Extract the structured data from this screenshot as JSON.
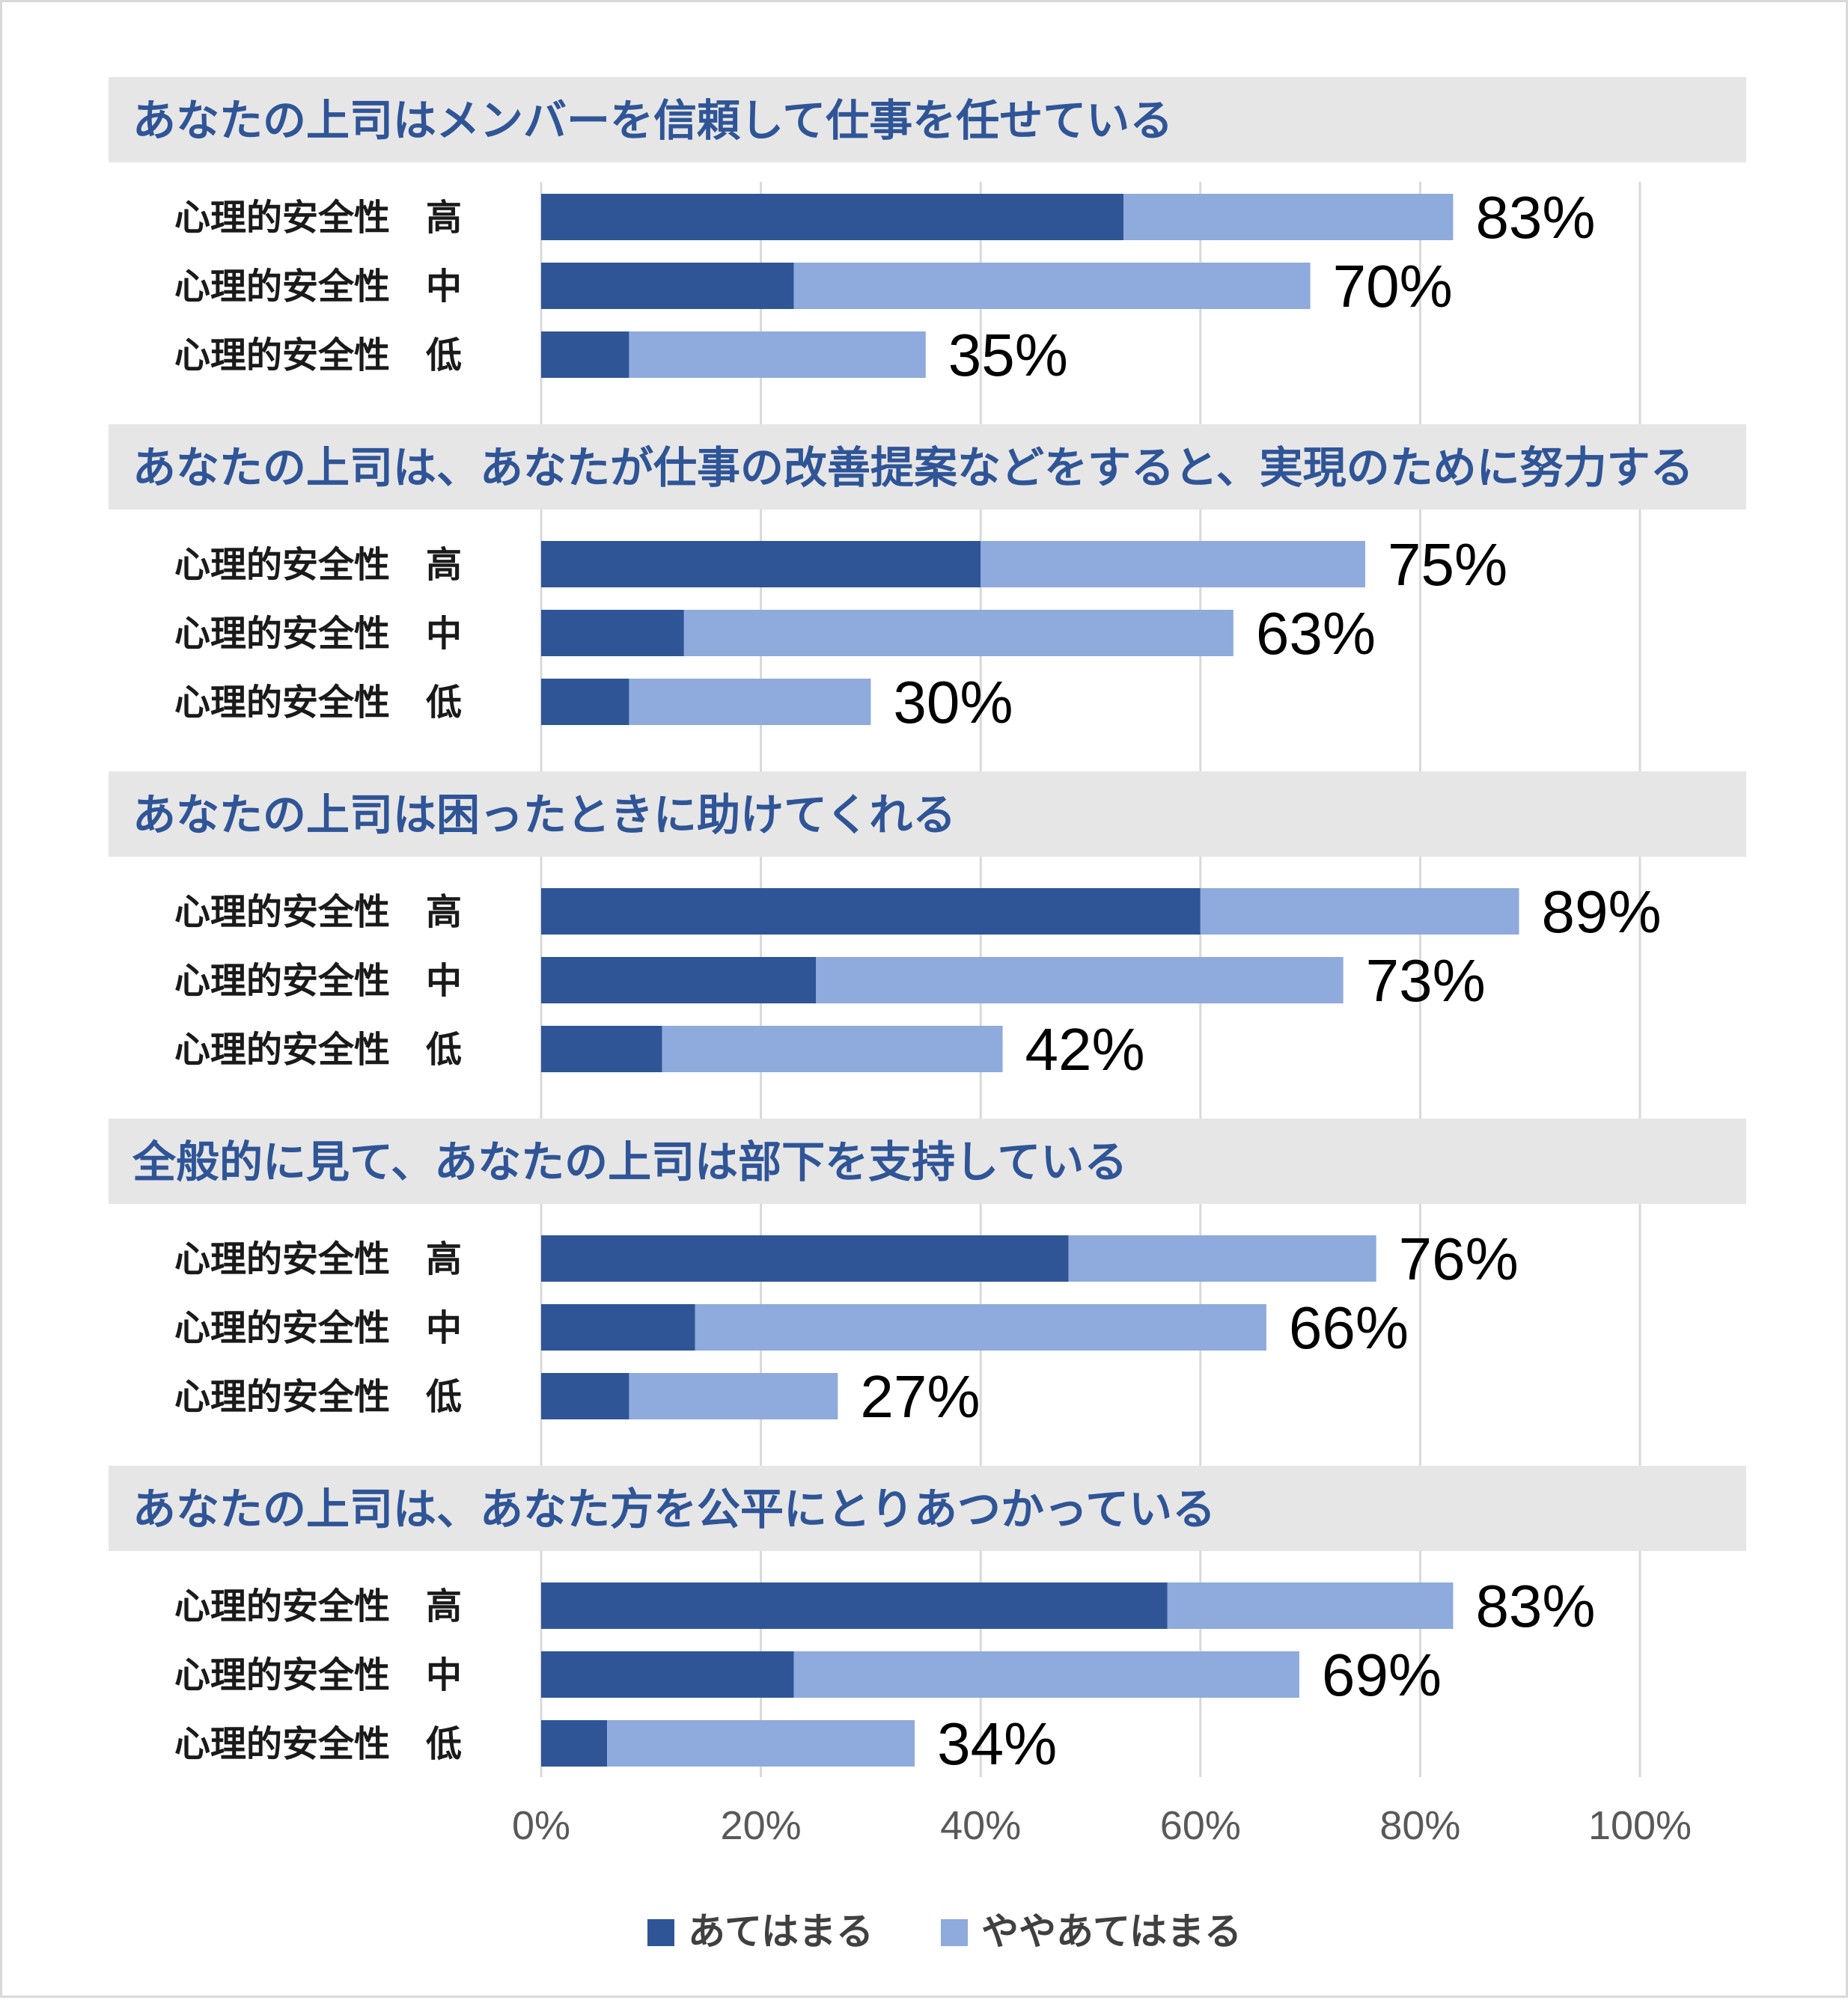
{
  "chart_data": {
    "type": "bar",
    "orientation": "horizontal",
    "stacked": true,
    "xlim": [
      0,
      100
    ],
    "x_ticks": [
      "0%",
      "20%",
      "40%",
      "60%",
      "80%",
      "100%"
    ],
    "grid": true,
    "legend_position": "bottom",
    "series": [
      {
        "name": "あてはまる",
        "color": "#2f5597"
      },
      {
        "name": "ややあてはまる",
        "color": "#8faadc"
      }
    ],
    "groups": [
      {
        "title": "あなたの上司はメンバーを信頼して仕事を任せている",
        "rows": [
          {
            "label": "心理的安全性　高",
            "strong": 53,
            "somewhat": 30,
            "total_label": "83%"
          },
          {
            "label": "心理的安全性　中",
            "strong": 23,
            "somewhat": 47,
            "total_label": "70%"
          },
          {
            "label": "心理的安全性　低",
            "strong": 8,
            "somewhat": 27,
            "total_label": "35%"
          }
        ]
      },
      {
        "title": "あなたの上司は、あなたが仕事の改善提案などをすると、実現のために努力する",
        "rows": [
          {
            "label": "心理的安全性　高",
            "strong": 40,
            "somewhat": 35,
            "total_label": "75%"
          },
          {
            "label": "心理的安全性　中",
            "strong": 13,
            "somewhat": 50,
            "total_label": "63%"
          },
          {
            "label": "心理的安全性　低",
            "strong": 8,
            "somewhat": 22,
            "total_label": "30%"
          }
        ]
      },
      {
        "title": "あなたの上司は困ったときに助けてくれる",
        "rows": [
          {
            "label": "心理的安全性　高",
            "strong": 60,
            "somewhat": 29,
            "total_label": "89%"
          },
          {
            "label": "心理的安全性　中",
            "strong": 25,
            "somewhat": 48,
            "total_label": "73%"
          },
          {
            "label": "心理的安全性　低",
            "strong": 11,
            "somewhat": 31,
            "total_label": "42%"
          }
        ]
      },
      {
        "title": "全般的に見て、あなたの上司は部下を支持している",
        "rows": [
          {
            "label": "心理的安全性　高",
            "strong": 48,
            "somewhat": 28,
            "total_label": "76%"
          },
          {
            "label": "心理的安全性　中",
            "strong": 14,
            "somewhat": 52,
            "total_label": "66%"
          },
          {
            "label": "心理的安全性　低",
            "strong": 8,
            "somewhat": 19,
            "total_label": "27%"
          }
        ]
      },
      {
        "title": "あなたの上司は、あなた方を公平にとりあつかっている",
        "rows": [
          {
            "label": "心理的安全性　高",
            "strong": 57,
            "somewhat": 26,
            "total_label": "83%"
          },
          {
            "label": "心理的安全性　中",
            "strong": 23,
            "somewhat": 46,
            "total_label": "69%"
          },
          {
            "label": "心理的安全性　低",
            "strong": 6,
            "somewhat": 28,
            "total_label": "34%"
          }
        ]
      }
    ]
  }
}
